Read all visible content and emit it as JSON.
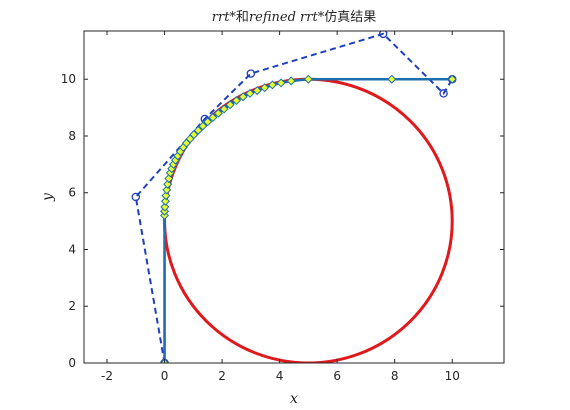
{
  "chart_data": {
    "type": "scatter",
    "title": {
      "parts": [
        {
          "text": "rrt*",
          "italic": true
        },
        {
          "text": "和",
          "italic": false
        },
        {
          "text": "refined rrt*",
          "italic": true
        },
        {
          "text": "仿真结果",
          "italic": false
        }
      ]
    },
    "xlabel": "x",
    "ylabel": "y",
    "xlim": [
      -2.8,
      11.8
    ],
    "ylim": [
      0,
      11.7
    ],
    "xticks": [
      -2,
      0,
      2,
      4,
      6,
      8,
      10
    ],
    "yticks": [
      0,
      2,
      4,
      6,
      8,
      10
    ],
    "grid": false,
    "colors": {
      "circle": "#e0191c",
      "dashed": "#1f3fbf",
      "path": "#1f6fae",
      "marker_fill": "#e6ff2e",
      "marker_edge": "#1f6fae",
      "box": "#262626"
    },
    "circle": {
      "center": [
        5,
        5
      ],
      "radius": 5,
      "name": "circle"
    },
    "series": [
      {
        "name": "rrt*",
        "style": "dashed",
        "marker": "circle-open",
        "x": [
          0,
          -1,
          1.4,
          3,
          7.6,
          9.7,
          10
        ],
        "y": [
          0,
          5.85,
          8.6,
          10.2,
          11.6,
          9.5,
          10
        ]
      },
      {
        "name": "refined rrt*",
        "style": "solid",
        "marker": "diamond-filled",
        "x": [
          0,
          0,
          0,
          0.01,
          0.03,
          0.05,
          0.08,
          0.11,
          0.15,
          0.2,
          0.25,
          0.31,
          0.38,
          0.46,
          0.55,
          0.65,
          0.76,
          0.89,
          1.02,
          1.17,
          1.33,
          1.5,
          1.68,
          1.87,
          2.07,
          2.28,
          2.5,
          2.73,
          2.97,
          3.22,
          3.48,
          3.75,
          4.05,
          4.4,
          5.0,
          7.9,
          10.0
        ],
        "y": [
          0,
          5.2,
          5.35,
          5.5,
          5.7,
          5.9,
          6.1,
          6.3,
          6.5,
          6.7,
          6.85,
          7.0,
          7.15,
          7.3,
          7.45,
          7.6,
          7.75,
          7.9,
          8.05,
          8.2,
          8.35,
          8.5,
          8.65,
          8.8,
          8.95,
          9.1,
          9.25,
          9.38,
          9.5,
          9.6,
          9.7,
          9.8,
          9.87,
          9.94,
          10.0,
          10.0,
          10.0
        ]
      }
    ]
  }
}
